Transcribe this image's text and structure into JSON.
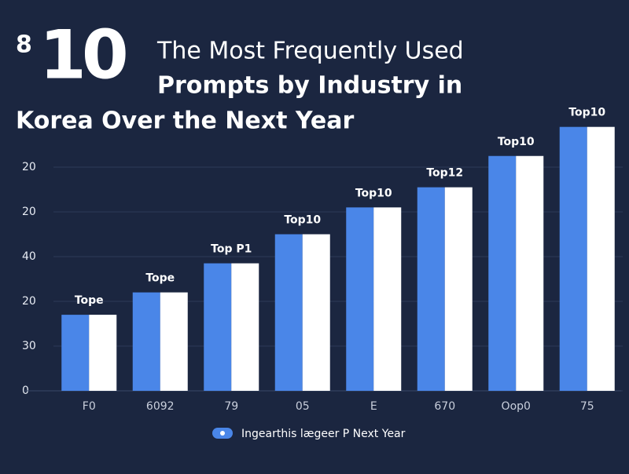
{
  "chart_data": {
    "type": "bar",
    "title_parts": [
      "8",
      "10",
      "The Most Frequently Used",
      "Prompts by Industry in",
      "Korea Over the Next Year"
    ],
    "categories": [
      "F0",
      "6092",
      "79",
      "05",
      "E",
      "670",
      "Oop0",
      "75"
    ],
    "series": [
      {
        "name": "Ingearthis lægeer P Next Year",
        "color": "#4a86e8",
        "values": [
          1.7,
          2.2,
          2.85,
          3.5,
          4.1,
          4.55,
          5.25,
          5.9
        ]
      },
      {
        "color": "#ffffff",
        "values": [
          1.7,
          2.2,
          2.85,
          3.5,
          4.1,
          4.55,
          5.25,
          5.9
        ]
      }
    ],
    "bar_labels": [
      "Tope",
      "Tope",
      "Top P1",
      "Top10",
      "Top10",
      "Top12",
      "Top10",
      "Top10"
    ],
    "ylim": [
      0,
      6
    ],
    "yticks": [
      {
        "value": 0,
        "label": "0"
      },
      {
        "value": 1,
        "label": "30"
      },
      {
        "value": 2,
        "label": "20"
      },
      {
        "value": 3,
        "label": "40"
      },
      {
        "value": 4,
        "label": "20"
      },
      {
        "value": 5,
        "label": "20"
      }
    ],
    "grid": true
  }
}
